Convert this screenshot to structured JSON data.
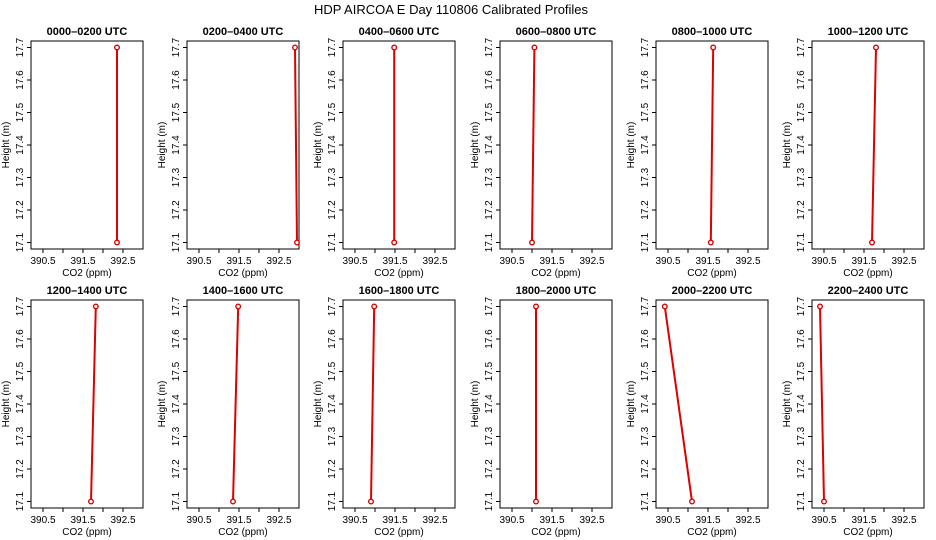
{
  "title": "HDP AIRCOA E  Day 110806  Calibrated Profiles",
  "colors": {
    "line": "#dd0000",
    "marker": "#dd0000",
    "frame": "#000000"
  },
  "chart_data": {
    "type": "line",
    "xlabel": "CO2 (ppm)",
    "ylabel": "Height (m)",
    "xlim": [
      390.2,
      393.0
    ],
    "ylim": [
      17.08,
      17.72
    ],
    "x_ticks": [
      "390.5",
      "391.5",
      "392.5"
    ],
    "x_tick_values": [
      390.5,
      391.0,
      391.5,
      392.0,
      392.5
    ],
    "y_ticks": [
      "17.1",
      "17.2",
      "17.3",
      "17.4",
      "17.5",
      "17.6",
      "17.7"
    ],
    "y_tick_values": [
      17.1,
      17.2,
      17.3,
      17.4,
      17.5,
      17.6,
      17.7
    ],
    "grid": false,
    "panels": [
      {
        "title": "0000–0200 UTC",
        "points": [
          {
            "x": 392.35,
            "y": 17.1
          },
          {
            "x": 392.35,
            "y": 17.7
          }
        ]
      },
      {
        "title": "0200–0400 UTC",
        "points": [
          {
            "x": 392.95,
            "y": 17.1
          },
          {
            "x": 392.9,
            "y": 17.7
          }
        ]
      },
      {
        "title": "0400–0600 UTC",
        "points": [
          {
            "x": 391.48,
            "y": 17.1
          },
          {
            "x": 391.48,
            "y": 17.7
          }
        ]
      },
      {
        "title": "0600–0800 UTC",
        "points": [
          {
            "x": 391.0,
            "y": 17.1
          },
          {
            "x": 391.06,
            "y": 17.7
          }
        ]
      },
      {
        "title": "0800–1000 UTC",
        "points": [
          {
            "x": 391.57,
            "y": 17.1
          },
          {
            "x": 391.63,
            "y": 17.7
          }
        ]
      },
      {
        "title": "1000–1200 UTC",
        "points": [
          {
            "x": 391.7,
            "y": 17.1
          },
          {
            "x": 391.8,
            "y": 17.7
          }
        ]
      },
      {
        "title": "1200–1400 UTC",
        "points": [
          {
            "x": 391.7,
            "y": 17.1
          },
          {
            "x": 391.82,
            "y": 17.7
          }
        ]
      },
      {
        "title": "1400–1600 UTC",
        "points": [
          {
            "x": 391.35,
            "y": 17.1
          },
          {
            "x": 391.48,
            "y": 17.7
          }
        ]
      },
      {
        "title": "1600–1800 UTC",
        "points": [
          {
            "x": 390.9,
            "y": 17.1
          },
          {
            "x": 390.98,
            "y": 17.7
          }
        ]
      },
      {
        "title": "1800–2000 UTC",
        "points": [
          {
            "x": 391.1,
            "y": 17.1
          },
          {
            "x": 391.1,
            "y": 17.7
          }
        ]
      },
      {
        "title": "2000–2200 UTC",
        "points": [
          {
            "x": 391.1,
            "y": 17.1
          },
          {
            "x": 390.42,
            "y": 17.7
          }
        ]
      },
      {
        "title": "2200–2400 UTC",
        "points": [
          {
            "x": 390.5,
            "y": 17.1
          },
          {
            "x": 390.4,
            "y": 17.7
          }
        ]
      }
    ]
  }
}
